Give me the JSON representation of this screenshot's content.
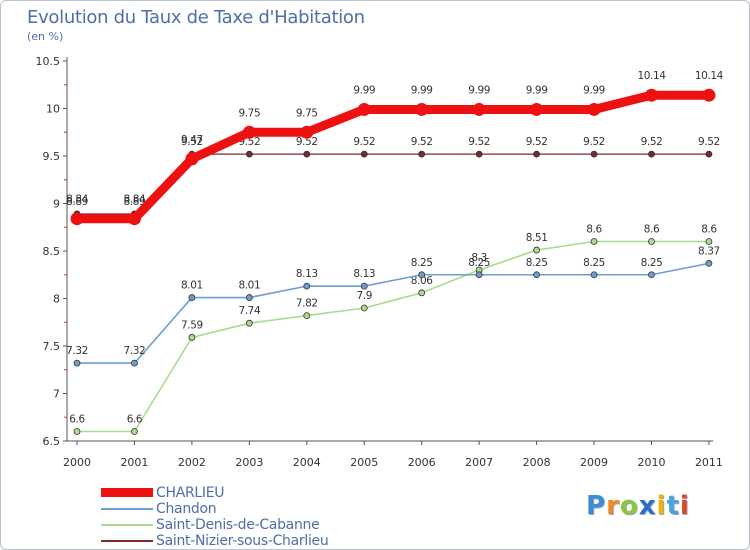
{
  "title": "Evolution du Taux de Taxe d'Habitation",
  "subtitle": "(en %)",
  "logo": {
    "letters": [
      "P",
      "r",
      "o",
      "x",
      "i",
      "t",
      "i"
    ],
    "colors": [
      "#3c8dd8",
      "#f08a24",
      "#8cc63f",
      "#2a6fc9",
      "#f0b400",
      "#4aa3df",
      "#e0442a"
    ]
  },
  "chart_data": {
    "type": "line",
    "title": "Evolution du Taux de Taxe d'Habitation",
    "subtitle": "(en %)",
    "x": [
      "2000",
      "2001",
      "2002",
      "2003",
      "2004",
      "2005",
      "2006",
      "2007",
      "2008",
      "2009",
      "2010",
      "2011"
    ],
    "ylim": [
      6.5,
      10.5
    ],
    "yticks": [
      "6.5",
      "7",
      "7.5",
      "8",
      "8.5",
      "9",
      "9.5",
      "10",
      "10.5"
    ],
    "grid": false,
    "legend_position": "bottom-left",
    "series": [
      {
        "name": "Saint-Nizier-sous-Charlieu",
        "color": "#7a2a2a",
        "width": 1.2,
        "values": [
          8.89,
          8.89,
          9.52,
          9.52,
          9.52,
          9.52,
          9.52,
          9.52,
          9.52,
          9.52,
          9.52,
          9.52
        ],
        "labels": [
          "8.89",
          "8.89",
          "9.52",
          "9.52",
          "9.52",
          "9.52",
          "9.52",
          "9.52",
          "9.52",
          "9.52",
          "9.52",
          "9.52"
        ]
      },
      {
        "name": "Saint-Denis-de-Cabanne",
        "color": "#a8dc8c",
        "width": 1.6,
        "values": [
          6.6,
          6.6,
          7.59,
          7.74,
          7.82,
          7.9,
          8.06,
          8.3,
          8.51,
          8.6,
          8.6,
          8.6
        ],
        "labels": [
          "6.6",
          "6.6",
          "7.59",
          "7.74",
          "7.82",
          "7.9",
          "8.06",
          "8.3",
          "8.51",
          "8.6",
          "8.6",
          "8.6"
        ]
      },
      {
        "name": "Chandon",
        "color": "#6e9ecf",
        "width": 1.6,
        "values": [
          7.32,
          7.32,
          8.01,
          8.01,
          8.13,
          8.13,
          8.25,
          8.25,
          8.25,
          8.25,
          8.25,
          8.37
        ],
        "labels": [
          "7.32",
          "7.32",
          "8.01",
          "8.01",
          "8.13",
          "8.13",
          "8.25",
          "8.25",
          "8.25",
          "8.25",
          "8.25",
          "8.37"
        ]
      },
      {
        "name": "CHARLIEU",
        "color": "#ee1111",
        "width": 9,
        "values": [
          8.84,
          8.84,
          9.47,
          9.75,
          9.75,
          9.99,
          9.99,
          9.99,
          9.99,
          9.99,
          10.14,
          10.14
        ],
        "labels": [
          "8.84",
          "8.84",
          "9.47",
          "9.75",
          "9.75",
          "9.99",
          "9.99",
          "9.99",
          "9.99",
          "9.99",
          "10.14",
          "10.14"
        ]
      }
    ]
  }
}
